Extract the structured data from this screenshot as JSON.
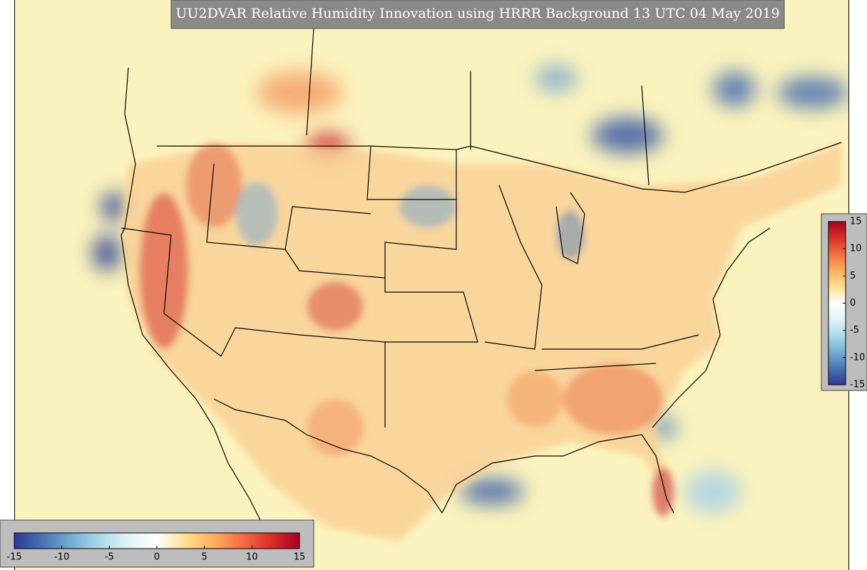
{
  "title": "UU2DVAR Relative Humidity Innovation using HRRR Background 13 UTC 04 May 2019",
  "colorbar": {
    "range": [
      -15,
      15
    ],
    "ticks": [
      -15,
      -10,
      -5,
      0,
      5,
      10,
      15
    ],
    "colors": [
      "#313695",
      "#4575b4",
      "#74add1",
      "#abd9e9",
      "#e0f3f8",
      "#ffffff",
      "#fee090",
      "#fdae61",
      "#f46d43",
      "#d73027",
      "#a50026"
    ]
  }
}
